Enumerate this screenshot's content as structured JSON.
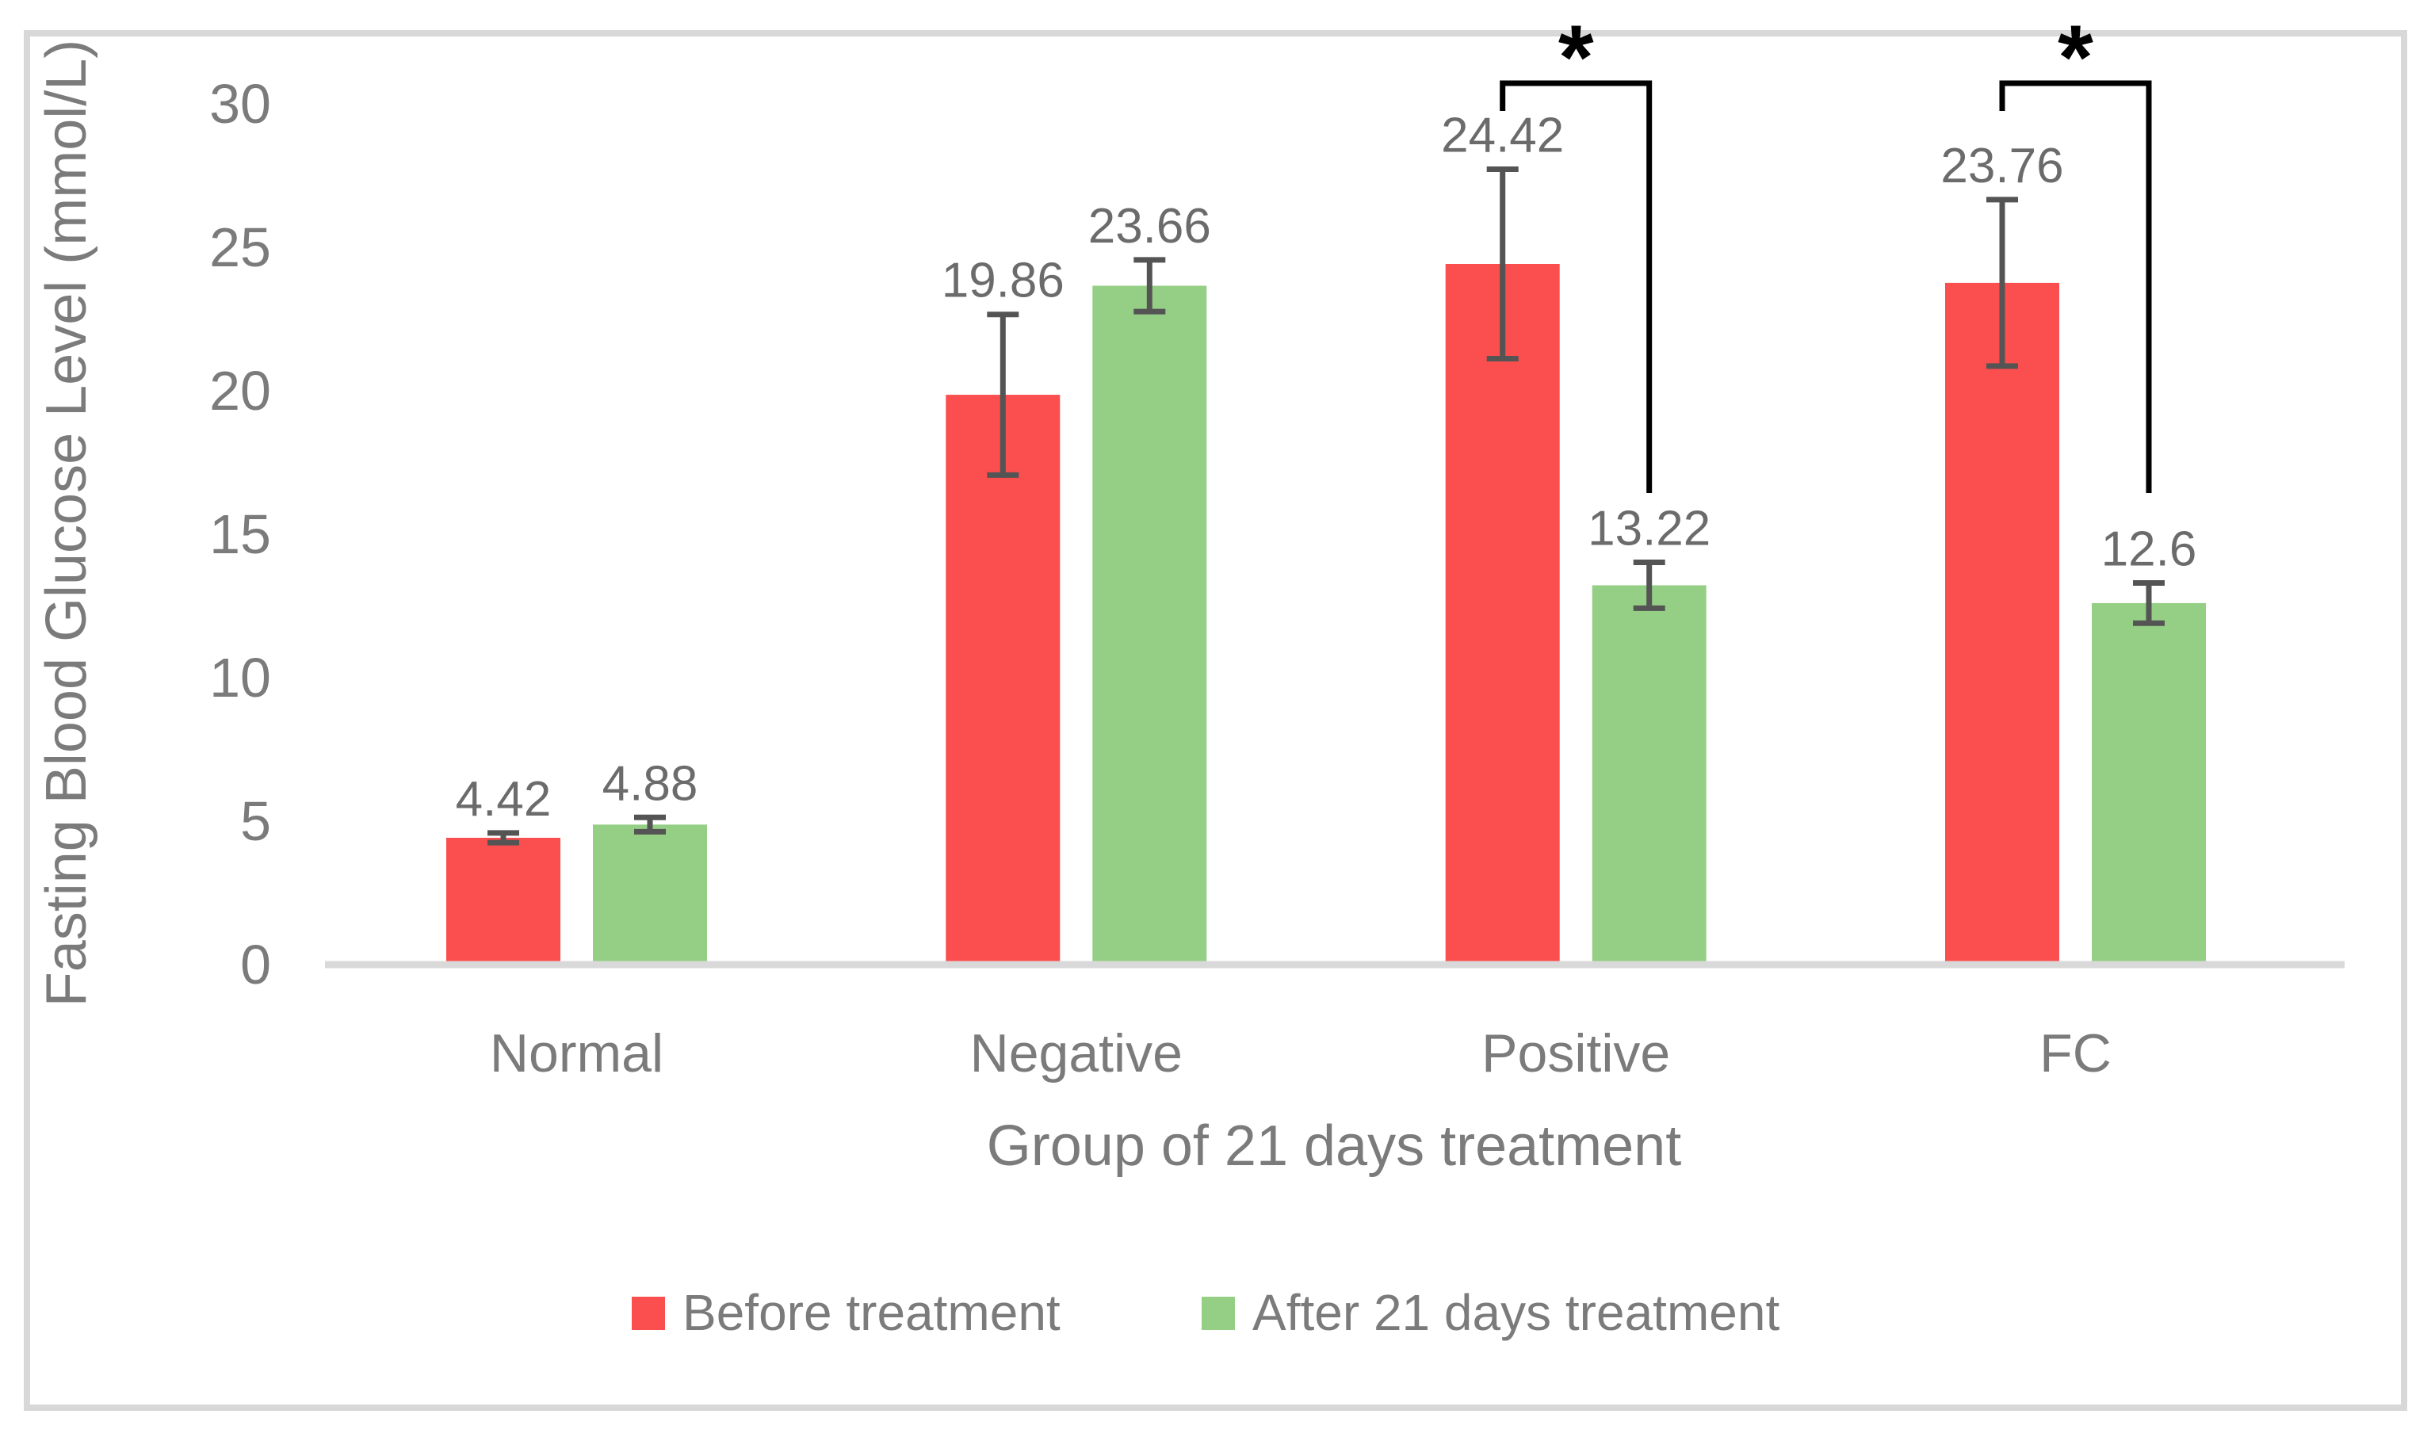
{
  "figure": {
    "type": "grouped-bar-chart-with-error-bars",
    "border_color": "#D8D8D8",
    "background": "#FFFFFF"
  },
  "chart_data": {
    "type": "bar",
    "title": "",
    "xlabel": "Group of 21 days treatment",
    "ylabel": "Fasting Blood Glucose Level (mmol/L)",
    "ylim": [
      0,
      30
    ],
    "yticks": [
      "0",
      "5",
      "10",
      "15",
      "20",
      "25",
      "30"
    ],
    "grid": false,
    "legend_position": "bottom",
    "categories": [
      "Normal",
      "Negative",
      "Positive",
      "FC"
    ],
    "series": [
      {
        "name": "Before treatment",
        "color": "#FB4E4E",
        "values": [
          4.42,
          19.86,
          24.42,
          23.76
        ],
        "errors": [
          0.17,
          2.8,
          3.3,
          2.9
        ],
        "data_labels": [
          "4.42",
          "19.86",
          "24.42",
          "23.76"
        ]
      },
      {
        "name": "After 21 days treatment",
        "color": "#95CF85",
        "values": [
          4.88,
          23.66,
          13.22,
          12.6
        ],
        "errors": [
          0.25,
          0.9,
          0.8,
          0.7
        ],
        "data_labels": [
          "4.88",
          "23.66",
          "13.22",
          "12.6"
        ]
      }
    ],
    "significance_brackets": [
      {
        "category": "Positive",
        "between": [
          "Before treatment",
          "After 21 days treatment"
        ],
        "label": "*"
      },
      {
        "category": "FC",
        "between": [
          "Before treatment",
          "After 21 days treatment"
        ],
        "label": "*"
      }
    ],
    "style_colors": {
      "axis_line": "#D9D9D9",
      "tick_text": "#7B7B7B",
      "data_label_text": "#6B6B6B",
      "error_bar": "#545454",
      "bracket": "#000000"
    }
  }
}
